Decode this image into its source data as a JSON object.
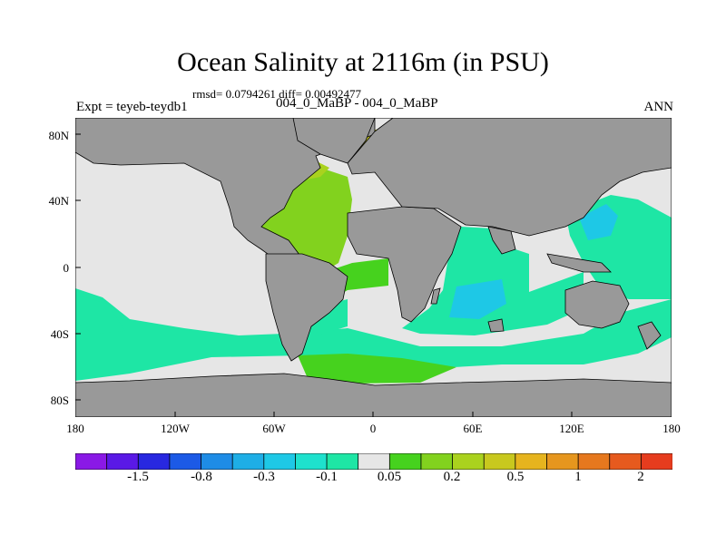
{
  "title": "Ocean Salinity at 2116m (in PSU)",
  "stats": "rmsd= 0.0794261 diff= 0.00492477",
  "subtitle": "004_0_MaBP - 004_0_MaBP",
  "experiment": "Expt = teyeb-teydb1",
  "season": "ANN",
  "lat_labels": [
    "80N",
    "40N",
    "0",
    "40S",
    "80S"
  ],
  "lon_labels": [
    "180",
    "120W",
    "60W",
    "0",
    "60E",
    "120E",
    "180"
  ],
  "colorbar": {
    "colors": [
      "#8a19e6",
      "#5a19e6",
      "#2828e0",
      "#1c5ae6",
      "#1e8ce6",
      "#1eaee6",
      "#1ec8e6",
      "#1ee1cd",
      "#1ee6a5",
      "#e6e6e6",
      "#46d21e",
      "#82d21e",
      "#aad21e",
      "#c8c81e",
      "#e6b41e",
      "#e6961e",
      "#e6781e",
      "#e65a1e",
      "#e63c1e"
    ],
    "labels": [
      "-1.5",
      "-0.8",
      "-0.3",
      "-0.1",
      "0.05",
      "0.2",
      "0.5",
      "1",
      "2"
    ]
  },
  "map_colors": {
    "land": "#999999",
    "near_zero": "#e6e6e6",
    "slight_negative": "#1ee6a5",
    "negative": "#1ec8e6",
    "slight_positive": "#46d21e",
    "positive": "#82d21e",
    "arctic_positive": "#aad21e",
    "high_positive": "#c8c81e"
  }
}
